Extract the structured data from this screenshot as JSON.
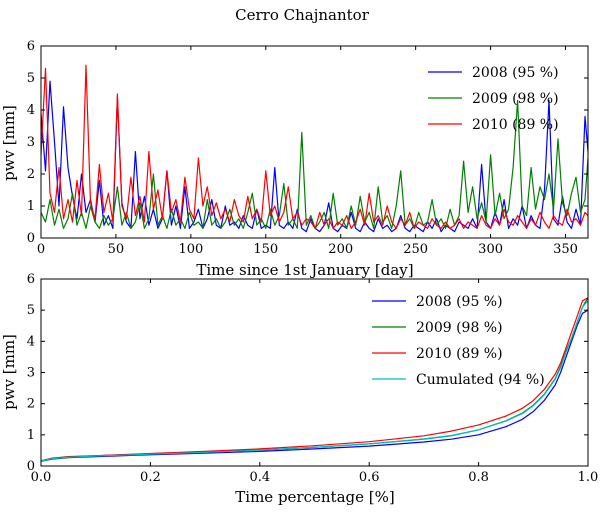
{
  "figure": {
    "title": "Cerro Chajnantor"
  },
  "chart_data": [
    {
      "type": "line",
      "xlabel": "Time since 1st January [day]",
      "ylabel": "pwv [mm]",
      "xlim": [
        0,
        365
      ],
      "ylim": [
        0,
        6
      ],
      "xticks": [
        0,
        50,
        100,
        150,
        200,
        250,
        300,
        350
      ],
      "xtick_labels": [
        "0",
        "50",
        "100",
        "150",
        "200",
        "250",
        "300",
        "350"
      ],
      "yticks": [
        0,
        1,
        2,
        3,
        4,
        5,
        6
      ],
      "ytick_labels": [
        "0",
        "1",
        "2",
        "3",
        "4",
        "5",
        "6"
      ],
      "legend_position": "top-right",
      "series": [
        {
          "name": "2008 (95 %)",
          "color": "#0000ff",
          "x": [
            0,
            3,
            6,
            9,
            12,
            15,
            18,
            21,
            24,
            27,
            30,
            33,
            36,
            39,
            42,
            45,
            48,
            51,
            54,
            57,
            60,
            63,
            66,
            69,
            72,
            75,
            78,
            81,
            84,
            87,
            90,
            93,
            96,
            99,
            102,
            105,
            108,
            111,
            114,
            117,
            120,
            123,
            126,
            129,
            132,
            135,
            138,
            141,
            144,
            147,
            150,
            153,
            156,
            159,
            162,
            165,
            168,
            171,
            174,
            177,
            180,
            183,
            186,
            189,
            192,
            195,
            198,
            201,
            204,
            207,
            210,
            213,
            216,
            219,
            222,
            225,
            228,
            231,
            234,
            237,
            240,
            243,
            246,
            249,
            252,
            255,
            258,
            261,
            264,
            267,
            270,
            273,
            276,
            279,
            282,
            285,
            288,
            291,
            294,
            297,
            300,
            303,
            306,
            309,
            312,
            315,
            318,
            321,
            324,
            327,
            330,
            333,
            336,
            339,
            342,
            345,
            348,
            351,
            354,
            357,
            360,
            363,
            365
          ],
          "y": [
            3.9,
            2.1,
            4.9,
            3.0,
            1.0,
            4.1,
            2.2,
            1.3,
            0.6,
            2.0,
            0.8,
            1.2,
            0.5,
            1.8,
            0.4,
            0.7,
            0.3,
            4.4,
            1.1,
            0.5,
            0.3,
            2.7,
            0.6,
            1.3,
            0.4,
            0.9,
            0.3,
            0.6,
            2.1,
            0.4,
            1.0,
            0.3,
            1.6,
            0.3,
            0.5,
            0.9,
            0.3,
            0.6,
            1.2,
            0.4,
            0.3,
            1.0,
            0.4,
            0.5,
            0.3,
            0.7,
            0.4,
            0.3,
            0.9,
            0.3,
            0.4,
            0.3,
            2.2,
            0.4,
            0.3,
            0.5,
            0.3,
            0.9,
            0.3,
            0.2,
            0.6,
            0.3,
            0.2,
            0.4,
            1.1,
            0.3,
            0.2,
            0.4,
            0.3,
            0.8,
            0.3,
            0.2,
            0.5,
            0.3,
            0.2,
            0.6,
            0.3,
            0.4,
            0.2,
            0.3,
            0.7,
            0.3,
            0.2,
            0.4,
            0.3,
            0.2,
            0.5,
            0.3,
            0.6,
            0.2,
            0.4,
            0.3,
            0.2,
            0.5,
            0.4,
            0.3,
            0.6,
            0.3,
            2.3,
            0.5,
            0.3,
            0.8,
            0.4,
            1.2,
            0.3,
            0.6,
            0.4,
            1.0,
            0.3,
            0.7,
            0.4,
            0.3,
            1.5,
            4.3,
            0.6,
            0.4,
            1.3,
            0.5,
            0.3,
            0.9,
            0.4,
            3.8,
            2.7
          ]
        },
        {
          "name": "2009 (98 %)",
          "color": "#008000",
          "x": [
            0,
            3,
            6,
            9,
            12,
            15,
            18,
            21,
            24,
            27,
            30,
            33,
            36,
            39,
            42,
            45,
            48,
            51,
            54,
            57,
            60,
            63,
            66,
            69,
            72,
            75,
            78,
            81,
            84,
            87,
            90,
            93,
            96,
            99,
            102,
            105,
            108,
            111,
            114,
            117,
            120,
            123,
            126,
            129,
            132,
            135,
            138,
            141,
            144,
            147,
            150,
            153,
            156,
            159,
            162,
            165,
            168,
            171,
            174,
            177,
            180,
            183,
            186,
            189,
            192,
            195,
            198,
            201,
            204,
            207,
            210,
            213,
            216,
            219,
            222,
            225,
            228,
            231,
            234,
            237,
            240,
            243,
            246,
            249,
            252,
            255,
            258,
            261,
            264,
            267,
            270,
            273,
            276,
            279,
            282,
            285,
            288,
            291,
            294,
            297,
            300,
            303,
            306,
            309,
            312,
            315,
            318,
            321,
            324,
            327,
            330,
            333,
            336,
            339,
            342,
            345,
            348,
            351,
            354,
            357,
            360,
            363,
            365
          ],
          "y": [
            0.8,
            0.5,
            1.2,
            0.4,
            0.9,
            0.3,
            0.6,
            1.4,
            0.4,
            0.8,
            0.3,
            1.0,
            0.5,
            0.3,
            0.7,
            0.4,
            0.6,
            1.6,
            0.4,
            0.8,
            0.3,
            0.5,
            1.1,
            0.3,
            0.6,
            2.0,
            0.4,
            0.7,
            0.3,
            0.9,
            0.4,
            0.6,
            0.3,
            0.8,
            0.4,
            0.5,
            0.3,
            1.2,
            0.4,
            0.6,
            0.3,
            0.5,
            0.9,
            0.4,
            0.6,
            0.3,
            0.8,
            1.4,
            0.4,
            0.6,
            0.3,
            0.9,
            0.4,
            0.7,
            1.7,
            0.4,
            0.6,
            0.3,
            3.3,
            0.4,
            0.7,
            0.3,
            0.5,
            0.8,
            0.3,
            1.4,
            0.4,
            0.6,
            0.3,
            1.0,
            0.4,
            1.3,
            0.5,
            0.8,
            0.3,
            1.6,
            0.5,
            0.7,
            0.3,
            1.0,
            2.1,
            0.4,
            0.6,
            0.3,
            0.8,
            0.4,
            0.5,
            1.2,
            0.4,
            0.6,
            0.3,
            0.9,
            0.4,
            0.7,
            2.4,
            0.8,
            1.6,
            0.6,
            1.1,
            0.5,
            2.6,
            0.7,
            1.4,
            0.6,
            0.9,
            2.2,
            4.3,
            1.0,
            0.7,
            2.2,
            0.9,
            1.6,
            1.2,
            2.0,
            0.9,
            3.1,
            1.1,
            0.7,
            1.4,
            1.9,
            0.8,
            1.2,
            2.5
          ]
        },
        {
          "name": "2010 (89 %)",
          "color": "#ff0000",
          "x": [
            0,
            3,
            6,
            9,
            12,
            15,
            18,
            21,
            24,
            27,
            30,
            33,
            36,
            39,
            42,
            45,
            48,
            51,
            54,
            57,
            60,
            63,
            66,
            69,
            72,
            75,
            78,
            81,
            84,
            87,
            90,
            93,
            96,
            99,
            102,
            105,
            108,
            111,
            114,
            117,
            120,
            123,
            126,
            129,
            132,
            135,
            138,
            141,
            144,
            147,
            150,
            153,
            156,
            159,
            162,
            165,
            168,
            171,
            174,
            177,
            180,
            183,
            186,
            189,
            192,
            195,
            198,
            201,
            204,
            207,
            210,
            213,
            216,
            219,
            222,
            225,
            228,
            231,
            234,
            237,
            240,
            243,
            246,
            249,
            252,
            255,
            258,
            261,
            264,
            267,
            270,
            273,
            276,
            279,
            282,
            285,
            288,
            291,
            294,
            297,
            300,
            303,
            306,
            309,
            312,
            315,
            318,
            321,
            324,
            327,
            330,
            333,
            336,
            339,
            342,
            345,
            348,
            351,
            354,
            357,
            360,
            363,
            365
          ],
          "y": [
            2.6,
            5.3,
            1.4,
            0.8,
            2.2,
            0.6,
            1.2,
            0.5,
            1.8,
            0.7,
            5.4,
            1.1,
            0.6,
            2.3,
            0.8,
            1.4,
            0.5,
            4.5,
            1.0,
            0.6,
            1.9,
            0.7,
            1.3,
            0.5,
            2.7,
            0.9,
            1.5,
            0.6,
            2.1,
            0.8,
            1.2,
            0.5,
            1.9,
            0.9,
            0.6,
            2.5,
            1.0,
            1.6,
            0.7,
            1.1,
            0.6,
            0.9,
            0.5,
            1.2,
            0.7,
            0.5,
            1.3,
            0.6,
            0.9,
            0.5,
            2.1,
            0.7,
            1.0,
            0.5,
            0.8,
            1.6,
            0.6,
            0.8,
            0.4,
            0.6,
            0.5,
            0.3,
            0.8,
            0.4,
            0.6,
            0.3,
            0.5,
            0.4,
            0.7,
            0.3,
            0.5,
            0.9,
            0.4,
            1.4,
            0.5,
            0.7,
            0.4,
            1.0,
            0.5,
            0.3,
            0.6,
            0.4,
            0.8,
            0.3,
            0.5,
            0.4,
            0.3,
            0.6,
            0.4,
            0.3,
            0.5,
            0.3,
            0.4,
            0.6,
            0.3,
            0.5,
            0.4,
            0.3,
            0.7,
            0.4,
            0.3,
            0.6,
            0.4,
            0.9,
            0.5,
            0.4,
            0.7,
            0.5,
            0.3,
            0.6,
            0.4,
            0.8,
            0.5,
            0.3,
            0.7,
            0.5,
            0.4,
            0.9,
            0.5,
            0.6,
            0.4,
            0.8,
            0.7
          ]
        }
      ]
    },
    {
      "type": "line",
      "xlabel": "Time percentage [%]",
      "ylabel": "pwv [mm]",
      "xlim": [
        0,
        1
      ],
      "ylim": [
        0,
        6
      ],
      "xticks": [
        0,
        0.2,
        0.4,
        0.6,
        0.8,
        1.0
      ],
      "xtick_labels": [
        "0.0",
        "0.2",
        "0.4",
        "0.6",
        "0.8",
        "1.0"
      ],
      "yticks": [
        0,
        1,
        2,
        3,
        4,
        5,
        6
      ],
      "ytick_labels": [
        "0",
        "1",
        "2",
        "3",
        "4",
        "5",
        "6"
      ],
      "legend_position": "top-right",
      "series": [
        {
          "name": "2008 (95 %)",
          "color": "#0000ff",
          "x": [
            0,
            0.02,
            0.05,
            0.1,
            0.2,
            0.3,
            0.4,
            0.5,
            0.6,
            0.7,
            0.75,
            0.8,
            0.85,
            0.88,
            0.9,
            0.92,
            0.94,
            0.95,
            0.96,
            0.97,
            0.98,
            0.99,
            1.0
          ],
          "y": [
            0.15,
            0.22,
            0.27,
            0.3,
            0.36,
            0.41,
            0.47,
            0.55,
            0.64,
            0.77,
            0.86,
            1.0,
            1.26,
            1.5,
            1.75,
            2.1,
            2.6,
            3.0,
            3.5,
            4.0,
            4.5,
            4.9,
            5.0
          ]
        },
        {
          "name": "2009 (98 %)",
          "color": "#008000",
          "x": [
            0,
            0.02,
            0.05,
            0.1,
            0.2,
            0.3,
            0.4,
            0.5,
            0.6,
            0.7,
            0.75,
            0.8,
            0.85,
            0.88,
            0.9,
            0.92,
            0.94,
            0.95,
            0.96,
            0.97,
            0.98,
            0.99,
            1.0
          ],
          "y": [
            0.17,
            0.25,
            0.3,
            0.33,
            0.39,
            0.45,
            0.51,
            0.6,
            0.71,
            0.86,
            0.97,
            1.16,
            1.45,
            1.7,
            1.95,
            2.3,
            2.8,
            3.2,
            3.7,
            4.1,
            4.6,
            5.1,
            5.4
          ]
        },
        {
          "name": "2010 (89 %)",
          "color": "#ff0000",
          "x": [
            0,
            0.02,
            0.05,
            0.1,
            0.2,
            0.3,
            0.4,
            0.5,
            0.6,
            0.7,
            0.75,
            0.8,
            0.85,
            0.88,
            0.9,
            0.92,
            0.94,
            0.95,
            0.96,
            0.97,
            0.98,
            0.99,
            1.0
          ],
          "y": [
            0.16,
            0.24,
            0.29,
            0.33,
            0.4,
            0.47,
            0.55,
            0.65,
            0.78,
            0.97,
            1.12,
            1.32,
            1.6,
            1.85,
            2.1,
            2.45,
            2.95,
            3.3,
            3.8,
            4.3,
            4.8,
            5.3,
            5.4
          ]
        },
        {
          "name": "Cumulated (94 %)",
          "color": "#00bfbf",
          "x": [
            0,
            0.02,
            0.05,
            0.1,
            0.2,
            0.3,
            0.4,
            0.5,
            0.6,
            0.7,
            0.75,
            0.8,
            0.85,
            0.88,
            0.9,
            0.92,
            0.94,
            0.95,
            0.96,
            0.97,
            0.98,
            0.99,
            1.0
          ],
          "y": [
            0.16,
            0.23,
            0.28,
            0.32,
            0.38,
            0.44,
            0.51,
            0.6,
            0.71,
            0.87,
            0.98,
            1.16,
            1.44,
            1.68,
            1.93,
            2.28,
            2.78,
            3.15,
            3.65,
            4.1,
            4.6,
            5.1,
            5.3
          ]
        }
      ]
    }
  ]
}
